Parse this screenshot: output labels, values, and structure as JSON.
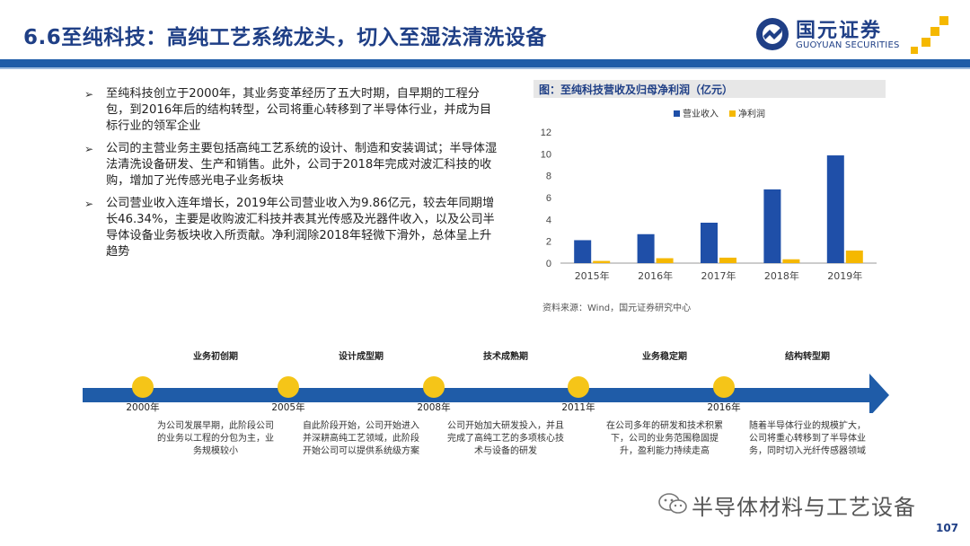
{
  "header": {
    "title": "6.6至纯科技：高纯工艺系统龙头，切入至湿法清洗设备",
    "brand_color": "#1f5ca8",
    "logo": {
      "cn": "国元证券",
      "en": "GUOYUAN SECURITIES"
    }
  },
  "bullets": [
    "至纯科技创立于2000年，其业务变革经历了五大时期，自早期的工程分包，到2016年后的结构转型，公司将重心转移到了半导体行业，并成为目标行业的领军企业",
    "公司的主营业务主要包括高纯工艺系统的设计、制造和安装调试；半导体湿法清洗设备研发、生产和销售。此外，公司于2018年完成对波汇科技的收购，增加了光传感光电子业务板块",
    "公司营业收入连年增长，2019年公司营业收入为9.86亿元，较去年同期增长46.34%，主要是收购波汇科技并表其光传感及光器件收入，以及公司半导体设备业务板块收入所贡献。净利润除2018年轻微下滑外，总体呈上升趋势"
  ],
  "chart": {
    "title": "图：至纯科技营收及归母净利润（亿元）",
    "source": "资料来源：Wind，国元证券研究中心"
  },
  "chart_data": {
    "type": "bar",
    "categories": [
      "2015年",
      "2016年",
      "2017年",
      "2018年",
      "2019年"
    ],
    "series": [
      {
        "name": "营业收入",
        "color": "#1f4fa8",
        "values": [
          2.1,
          2.65,
          3.7,
          6.75,
          9.86
        ]
      },
      {
        "name": "净利润",
        "color": "#f5b800",
        "values": [
          0.2,
          0.45,
          0.5,
          0.35,
          1.15
        ]
      }
    ],
    "ylim": [
      0,
      12
    ],
    "yticks": [
      0,
      2,
      4,
      6,
      8,
      10,
      12
    ],
    "grid": false,
    "legend": "top-right"
  },
  "timeline": {
    "arrow_color": "#1f5ca8",
    "dot_color": "#f5c518",
    "phases": [
      {
        "name": "业务初创期",
        "year": "2000年",
        "desc": "为公司发展早期，此阶段公司的业务以工程的分包为主，业务规模较小"
      },
      {
        "name": "设计成型期",
        "year": "2005年",
        "desc": "自此阶段开始，公司开始进入并深耕高纯工艺领域，此阶段开始公司可以提供系统级方案"
      },
      {
        "name": "技术成熟期",
        "year": "2008年",
        "desc": "公司开始加大研发投入，并且完成了高纯工艺的多项核心技术与设备的研发"
      },
      {
        "name": "业务稳定期",
        "year": "2011年",
        "desc": "在公司多年的研发和技术积累下，公司的业务范围稳固提升，盈利能力持续走高"
      },
      {
        "name": "结构转型期",
        "year": "2016年",
        "desc": "随着半导体行业的规模扩大，公司将重心转移到了半导体业务，同时切入光纤传感器领域"
      }
    ]
  },
  "footer": {
    "watermark": "半导体材料与工艺设备",
    "page_number": "107"
  }
}
